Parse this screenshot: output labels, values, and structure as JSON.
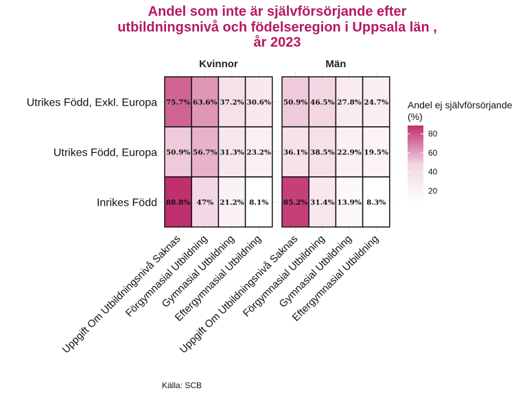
{
  "chart_data": {
    "type": "heatmap",
    "title": [
      "Andel som inte är självförsörjande efter",
      "utbildningsnivå och födelseregion i Uppsala län ,",
      "år 2023"
    ],
    "facets": [
      "Kvinnor",
      "Män"
    ],
    "x_categories": [
      "Uppgift Om Utbildningsnivå Saknas",
      "Förgymnasial Utbildning",
      "Gymnasial Utbildning",
      "Eftergymnasial Utbildning"
    ],
    "y_categories": [
      "Utrikes Född, Exkl. Europa",
      "Utrikes Född, Europa",
      "Inrikes Född"
    ],
    "values": {
      "Kvinnor": [
        [
          75.7,
          63.6,
          37.2,
          30.6
        ],
        [
          50.9,
          56.7,
          31.3,
          23.2
        ],
        [
          88.8,
          47,
          21.2,
          8.1
        ]
      ],
      "Män": [
        [
          50.9,
          46.5,
          27.8,
          24.7
        ],
        [
          36.1,
          38.5,
          22.9,
          19.5
        ],
        [
          85.2,
          31.4,
          13.9,
          8.3
        ]
      ]
    },
    "labels": {
      "Kvinnor": [
        [
          "75.7%",
          "63.6%",
          "37.2%",
          "30.6%"
        ],
        [
          "50.9%",
          "56.7%",
          "31.3%",
          "23.2%"
        ],
        [
          "88.8%",
          "47%",
          "21.2%",
          "8.1%"
        ]
      ],
      "Män": [
        [
          "50.9%",
          "46.5%",
          "27.8%",
          "24.7%"
        ],
        [
          "36.1%",
          "38.5%",
          "22.9%",
          "19.5%"
        ],
        [
          "85.2%",
          "31.4%",
          "13.9%",
          "8.3%"
        ]
      ]
    },
    "legend": {
      "title": [
        "Andel ej självförsörjande",
        "(%)"
      ],
      "ticks": [
        20,
        40,
        60,
        80
      ],
      "range": [
        8.1,
        88.8
      ],
      "placement": "right"
    },
    "colors": {
      "low": "#ffffff",
      "mid": "#f3d6e3",
      "high": "#c0306e"
    },
    "caption": "Källa: SCB"
  }
}
